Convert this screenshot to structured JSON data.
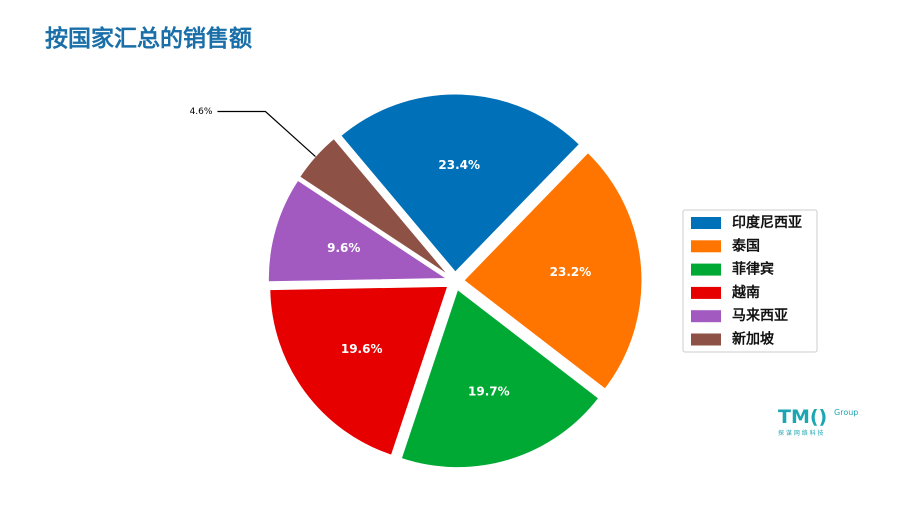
{
  "chart_data": {
    "type": "pie",
    "title": "按国家汇总的销售额",
    "categories": [
      "印度尼西亚",
      "泰国",
      "菲律宾",
      "越南",
      "马来西亚",
      "新加坡"
    ],
    "values": [
      23.4,
      23.2,
      19.7,
      19.6,
      9.6,
      4.6
    ],
    "value_labels": [
      "23.4%",
      "23.2%",
      "19.7%",
      "19.6%",
      "9.6%",
      "4.6%"
    ],
    "colors": [
      "#0070b8",
      "#ff7500",
      "#00a834",
      "#e60000",
      "#a259c0",
      "#8e5146"
    ],
    "legend": "right"
  },
  "logo": {
    "mark": "TM()",
    "group": "Group",
    "subtitle": "探 谋 网 络 科 技"
  }
}
